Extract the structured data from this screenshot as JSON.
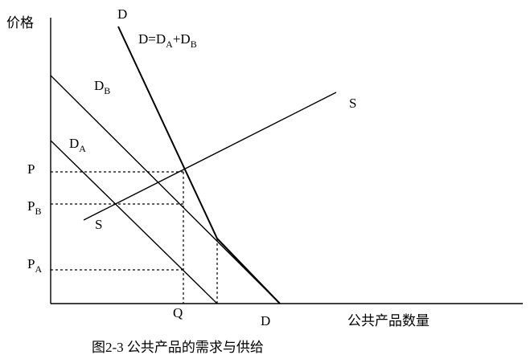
{
  "y_axis_label": "价格",
  "x_axis_label": "公共产品数量",
  "caption": "图2-3 公共产品的需求与供给",
  "total_demand_top_label": "D",
  "total_demand_formula": {
    "parts": [
      "D=D",
      "A",
      "+D",
      "B"
    ]
  },
  "demand_b_label": {
    "main": "D",
    "sub": "B"
  },
  "demand_a_label": {
    "main": "D",
    "sub": "A"
  },
  "supply_top_label": "S",
  "supply_bottom_label": "S",
  "price_p": "P",
  "price_pb": {
    "main": "P",
    "sub": "B"
  },
  "price_pa": {
    "main": "P",
    "sub": "A"
  },
  "quantity_q": "Q",
  "total_demand_bottom_label": "D"
}
